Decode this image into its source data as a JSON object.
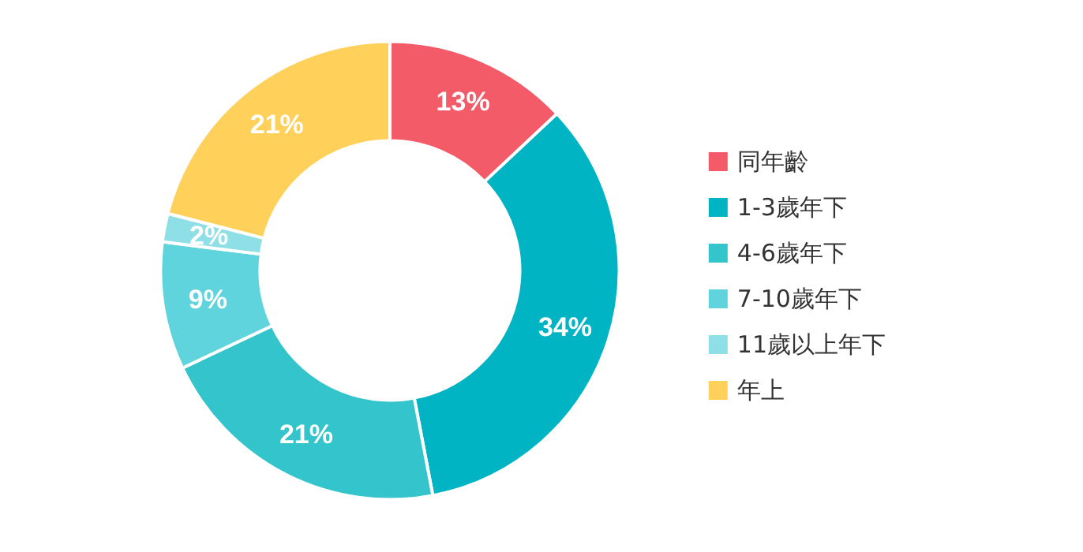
{
  "chart_data": {
    "type": "donut",
    "categories": [
      "同年齡",
      "1-3歲年下",
      "4-6歲年下",
      "7-10歲年下",
      "11歲以上年下",
      "年上"
    ],
    "values": [
      13,
      34,
      21,
      9,
      2,
      21
    ],
    "colors": [
      "#f45b69",
      "#00b4c4",
      "#33c4cc",
      "#5fd4dc",
      "#8fe0e6",
      "#ffd05a"
    ],
    "value_labels": [
      "13%",
      "34%",
      "21%",
      "9%",
      "2%",
      "21%"
    ],
    "legend": "right"
  }
}
